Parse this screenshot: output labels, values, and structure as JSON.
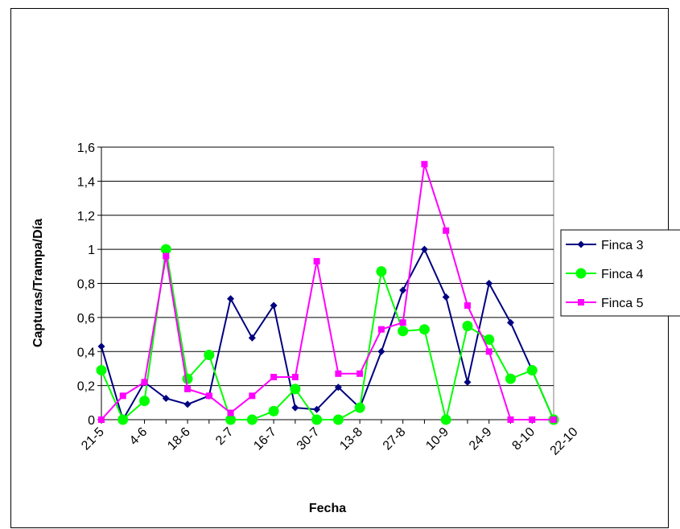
{
  "chart_data": {
    "type": "line",
    "title": "",
    "xlabel": "Fecha",
    "ylabel": "Capturas/Trampa/Día",
    "ylim": [
      0,
      1.6
    ],
    "yticks": [
      "0",
      "0,2",
      "0,4",
      "0,6",
      "0,8",
      "1",
      "1,2",
      "1,4",
      "1,6"
    ],
    "x_tick_labels": [
      "21-5",
      "4-6",
      "18-6",
      "2-7",
      "16-7",
      "30-7",
      "13-8",
      "27-8",
      "10-9",
      "24-9",
      "8-10",
      "22-10"
    ],
    "grid": "horizontal",
    "legend_position": "right",
    "series": [
      {
        "name": "Finca 3",
        "color": "#000080",
        "marker": "diamond",
        "values": [
          0.43,
          0,
          0.22,
          0.125,
          0.09,
          0.14,
          0.71,
          0.48,
          0.67,
          0.07,
          0.06,
          0.19,
          0.07,
          0.4,
          0.76,
          1.0,
          0.72,
          0.22,
          0.8,
          0.57,
          0.29,
          0
        ]
      },
      {
        "name": "Finca 4",
        "color": "#00ff00",
        "marker": "circle",
        "values": [
          0.29,
          0,
          0.11,
          1.0,
          0.24,
          0.38,
          0,
          0,
          0.05,
          0.18,
          0,
          0,
          0.07,
          0.87,
          0.52,
          0.53,
          0,
          0.55,
          0.47,
          0.24,
          0.29,
          0
        ]
      },
      {
        "name": "Finca 5",
        "color": "#ff00ff",
        "marker": "square",
        "values": [
          0,
          0.14,
          0.22,
          0.96,
          0.18,
          0.14,
          0.04,
          0.14,
          0.25,
          0.25,
          0.93,
          0.27,
          0.27,
          0.53,
          0.57,
          1.5,
          1.11,
          0.67,
          0.4,
          0,
          0,
          0
        ]
      }
    ]
  }
}
